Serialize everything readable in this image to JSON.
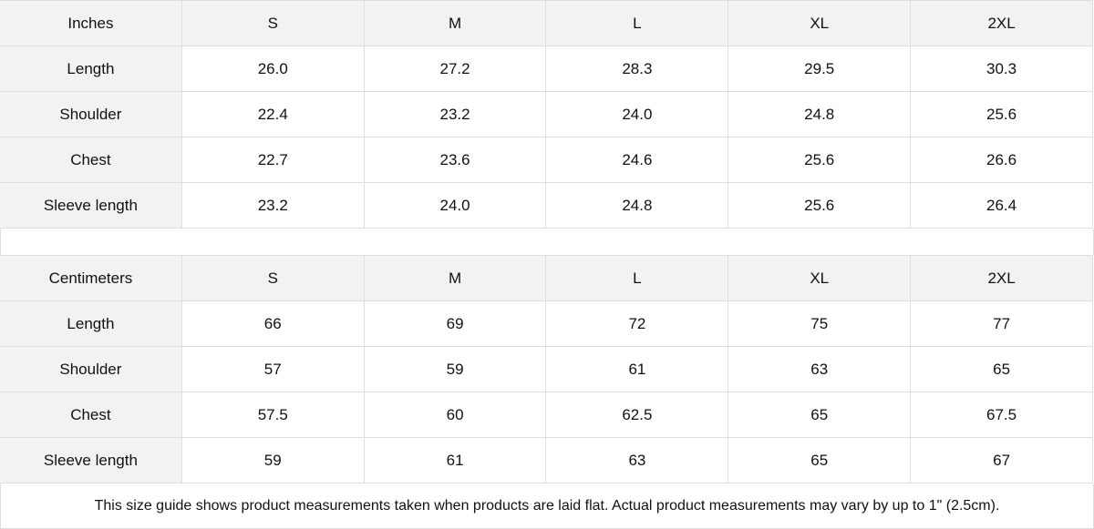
{
  "tables": [
    {
      "header": [
        "Inches",
        "S",
        "M",
        "L",
        "XL",
        "2XL"
      ],
      "rows": [
        [
          "Length",
          "26.0",
          "27.2",
          "28.3",
          "29.5",
          "30.3"
        ],
        [
          "Shoulder",
          "22.4",
          "23.2",
          "24.0",
          "24.8",
          "25.6"
        ],
        [
          "Chest",
          "22.7",
          "23.6",
          "24.6",
          "25.6",
          "26.6"
        ],
        [
          "Sleeve length",
          "23.2",
          "24.0",
          "24.8",
          "25.6",
          "26.4"
        ]
      ]
    },
    {
      "header": [
        "Centimeters",
        "S",
        "M",
        "L",
        "XL",
        "2XL"
      ],
      "rows": [
        [
          "Length",
          "66",
          "69",
          "72",
          "75",
          "77"
        ],
        [
          "Shoulder",
          "57",
          "59",
          "61",
          "63",
          "65"
        ],
        [
          "Chest",
          "57.5",
          "60",
          "62.5",
          "65",
          "67.5"
        ],
        [
          "Sleeve length",
          "59",
          "61",
          "63",
          "65",
          "67"
        ]
      ]
    }
  ],
  "note": "This size guide shows product measurements taken when products are laid flat.  Actual product measurements may vary by up to 1\" (2.5cm).",
  "colors": {
    "header_bg": "#f2f2f2",
    "border": "#dddddd"
  }
}
